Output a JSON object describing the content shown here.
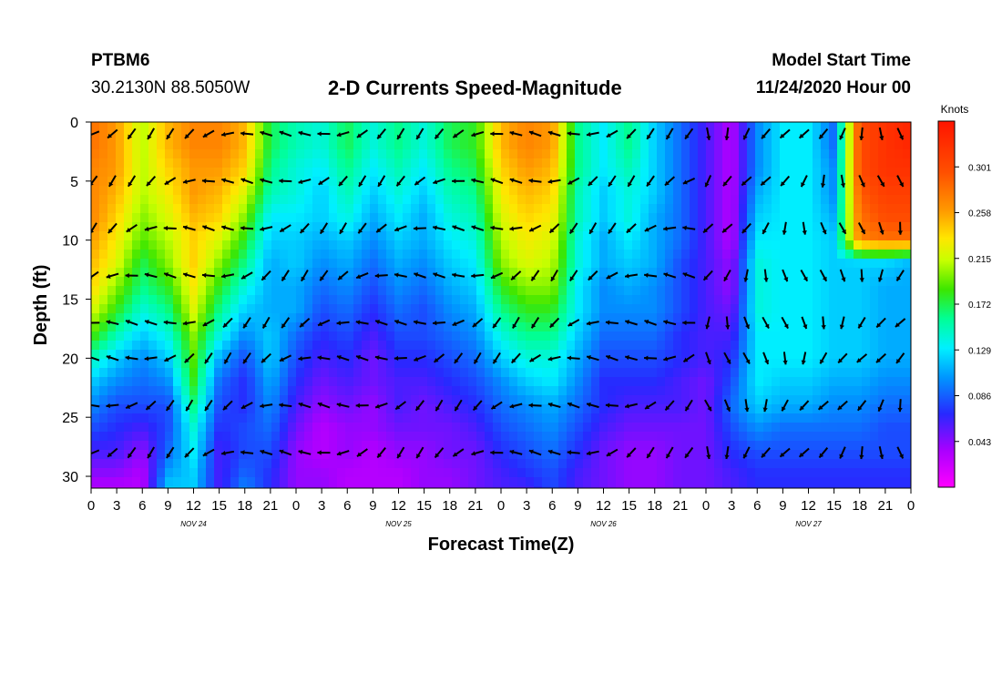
{
  "header": {
    "station": "PTBM6",
    "coords": "30.2130N 88.5050W",
    "title": "2-D Currents Speed-Magnitude",
    "model_start_label": "Model Start Time",
    "model_start_value": "11/24/2020 Hour 00"
  },
  "chart_data": {
    "type": "heatmap",
    "title": "2-D Currents Speed-Magnitude",
    "xlabel": "Forecast Time(Z)",
    "ylabel": "Depth (ft)",
    "xlim": [
      0,
      96
    ],
    "ylim": [
      0,
      31
    ],
    "y_inverted": true,
    "x_ticks": [
      0,
      3,
      6,
      9,
      12,
      15,
      18,
      21,
      24,
      27,
      30,
      33,
      36,
      39,
      42,
      45,
      48,
      51,
      54,
      57,
      60,
      63,
      66,
      69,
      72,
      75,
      78,
      81,
      84,
      87,
      90,
      93,
      96
    ],
    "x_tick_labels": [
      "0",
      "3",
      "6",
      "9",
      "12",
      "15",
      "18",
      "21",
      "0",
      "3",
      "6",
      "9",
      "12",
      "15",
      "18",
      "21",
      "0",
      "3",
      "6",
      "9",
      "12",
      "15",
      "18",
      "21",
      "0",
      "3",
      "6",
      "9",
      "12",
      "15",
      "18",
      "21",
      "0"
    ],
    "date_labels": [
      {
        "x": 12,
        "text": "NOV 24"
      },
      {
        "x": 36,
        "text": "NOV 25"
      },
      {
        "x": 60,
        "text": "NOV 26"
      },
      {
        "x": 84,
        "text": "NOV 27"
      }
    ],
    "y_ticks": [
      0,
      5,
      10,
      15,
      20,
      25,
      30
    ],
    "colorbar": {
      "unit": "Knots",
      "range": [
        0.0,
        0.344
      ],
      "tick_values": [
        0.043,
        0.086,
        0.129,
        0.172,
        0.215,
        0.258,
        0.301
      ],
      "tick_labels": [
        "0.043",
        "0.086",
        "0.129",
        "0.172",
        "0.215",
        "0.258",
        "0.301"
      ]
    },
    "arrow_depths": [
      1,
      5,
      9,
      13,
      17,
      20,
      24,
      28
    ],
    "field": {
      "hours": [
        0,
        3,
        6,
        9,
        12,
        15,
        18,
        21,
        24,
        27,
        30,
        33,
        36,
        39,
        42,
        45,
        48,
        51,
        54,
        57,
        60,
        63,
        66,
        69,
        72,
        75,
        78,
        81,
        84,
        87,
        90,
        93,
        96
      ],
      "depths": [
        0,
        2,
        4,
        6,
        8,
        10,
        12,
        14,
        16,
        18,
        20,
        22,
        24,
        26,
        28,
        30,
        31
      ],
      "speed": [
        [
          0.28,
          0.28,
          0.27,
          0.27,
          0.27,
          0.26,
          0.25,
          0.24,
          0.22,
          0.19,
          0.15,
          0.12,
          0.1,
          0.08,
          0.06,
          0.04,
          0.03
        ],
        [
          0.26,
          0.26,
          0.26,
          0.25,
          0.24,
          0.23,
          0.22,
          0.2,
          0.18,
          0.15,
          0.12,
          0.1,
          0.08,
          0.07,
          0.06,
          0.04,
          0.03
        ],
        [
          0.21,
          0.21,
          0.21,
          0.21,
          0.2,
          0.19,
          0.17,
          0.16,
          0.14,
          0.12,
          0.1,
          0.09,
          0.08,
          0.06,
          0.04,
          0.03,
          0.03
        ],
        [
          0.25,
          0.25,
          0.24,
          0.23,
          0.22,
          0.21,
          0.2,
          0.18,
          0.16,
          0.14,
          0.12,
          0.1,
          0.08,
          0.08,
          0.09,
          0.11,
          0.12
        ],
        [
          0.27,
          0.27,
          0.26,
          0.26,
          0.25,
          0.24,
          0.24,
          0.23,
          0.22,
          0.2,
          0.19,
          0.18,
          0.16,
          0.14,
          0.13,
          0.12,
          0.12
        ],
        [
          0.27,
          0.27,
          0.26,
          0.25,
          0.24,
          0.22,
          0.2,
          0.18,
          0.16,
          0.14,
          0.11,
          0.09,
          0.08,
          0.07,
          0.06,
          0.06,
          0.06
        ],
        [
          0.25,
          0.25,
          0.24,
          0.22,
          0.2,
          0.18,
          0.16,
          0.14,
          0.12,
          0.1,
          0.08,
          0.07,
          0.07,
          0.08,
          0.08,
          0.09,
          0.1
        ],
        [
          0.17,
          0.17,
          0.16,
          0.15,
          0.13,
          0.12,
          0.11,
          0.11,
          0.11,
          0.12,
          0.12,
          0.11,
          0.1,
          0.09,
          0.08,
          0.07,
          0.07
        ],
        [
          0.15,
          0.15,
          0.14,
          0.14,
          0.13,
          0.12,
          0.12,
          0.11,
          0.11,
          0.09,
          0.08,
          0.07,
          0.06,
          0.05,
          0.04,
          0.04,
          0.04
        ],
        [
          0.14,
          0.14,
          0.13,
          0.12,
          0.12,
          0.11,
          0.1,
          0.09,
          0.08,
          0.07,
          0.06,
          0.05,
          0.04,
          0.03,
          0.03,
          0.04,
          0.04
        ],
        [
          0.17,
          0.17,
          0.16,
          0.15,
          0.14,
          0.12,
          0.11,
          0.1,
          0.09,
          0.08,
          0.07,
          0.06,
          0.05,
          0.04,
          0.04,
          0.03,
          0.03
        ],
        [
          0.14,
          0.14,
          0.13,
          0.12,
          0.11,
          0.1,
          0.09,
          0.08,
          0.07,
          0.06,
          0.05,
          0.05,
          0.04,
          0.04,
          0.03,
          0.03,
          0.03
        ],
        [
          0.16,
          0.16,
          0.15,
          0.14,
          0.13,
          0.12,
          0.11,
          0.1,
          0.09,
          0.08,
          0.07,
          0.06,
          0.06,
          0.05,
          0.04,
          0.03,
          0.03
        ],
        [
          0.14,
          0.14,
          0.13,
          0.12,
          0.11,
          0.11,
          0.1,
          0.09,
          0.08,
          0.08,
          0.07,
          0.06,
          0.05,
          0.05,
          0.04,
          0.04,
          0.04
        ],
        [
          0.17,
          0.17,
          0.16,
          0.15,
          0.14,
          0.13,
          0.12,
          0.11,
          0.1,
          0.09,
          0.08,
          0.07,
          0.06,
          0.05,
          0.05,
          0.04,
          0.04
        ],
        [
          0.18,
          0.18,
          0.17,
          0.16,
          0.15,
          0.14,
          0.13,
          0.12,
          0.11,
          0.1,
          0.09,
          0.08,
          0.07,
          0.06,
          0.05,
          0.05,
          0.05
        ],
        [
          0.25,
          0.25,
          0.24,
          0.23,
          0.22,
          0.21,
          0.2,
          0.18,
          0.16,
          0.14,
          0.12,
          0.1,
          0.09,
          0.08,
          0.07,
          0.06,
          0.06
        ],
        [
          0.27,
          0.27,
          0.26,
          0.25,
          0.24,
          0.23,
          0.22,
          0.2,
          0.18,
          0.16,
          0.14,
          0.12,
          0.1,
          0.09,
          0.08,
          0.07,
          0.06
        ],
        [
          0.26,
          0.26,
          0.25,
          0.24,
          0.23,
          0.22,
          0.21,
          0.2,
          0.18,
          0.16,
          0.14,
          0.13,
          0.11,
          0.1,
          0.09,
          0.08,
          0.08
        ],
        [
          0.16,
          0.16,
          0.16,
          0.15,
          0.15,
          0.14,
          0.14,
          0.13,
          0.13,
          0.12,
          0.11,
          0.1,
          0.09,
          0.08,
          0.07,
          0.06,
          0.06
        ],
        [
          0.13,
          0.13,
          0.13,
          0.12,
          0.12,
          0.11,
          0.11,
          0.1,
          0.1,
          0.09,
          0.08,
          0.07,
          0.07,
          0.06,
          0.05,
          0.05,
          0.05
        ],
        [
          0.16,
          0.16,
          0.15,
          0.14,
          0.14,
          0.13,
          0.12,
          0.11,
          0.1,
          0.09,
          0.08,
          0.07,
          0.06,
          0.05,
          0.04,
          0.04,
          0.04
        ],
        [
          0.12,
          0.12,
          0.12,
          0.12,
          0.11,
          0.11,
          0.11,
          0.1,
          0.1,
          0.09,
          0.08,
          0.07,
          0.06,
          0.05,
          0.04,
          0.04,
          0.04
        ],
        [
          0.09,
          0.09,
          0.09,
          0.09,
          0.09,
          0.09,
          0.08,
          0.08,
          0.08,
          0.07,
          0.07,
          0.06,
          0.06,
          0.05,
          0.05,
          0.05,
          0.05
        ],
        [
          0.06,
          0.06,
          0.06,
          0.06,
          0.06,
          0.06,
          0.06,
          0.06,
          0.06,
          0.06,
          0.06,
          0.05,
          0.05,
          0.05,
          0.05,
          0.05,
          0.05
        ],
        [
          0.03,
          0.03,
          0.03,
          0.03,
          0.03,
          0.03,
          0.04,
          0.04,
          0.05,
          0.06,
          0.07,
          0.08,
          0.09,
          0.08,
          0.07,
          0.06,
          0.06
        ],
        [
          0.1,
          0.1,
          0.1,
          0.11,
          0.12,
          0.13,
          0.14,
          0.14,
          0.14,
          0.13,
          0.13,
          0.13,
          0.12,
          0.1,
          0.08,
          0.07,
          0.07
        ],
        [
          0.13,
          0.13,
          0.13,
          0.13,
          0.13,
          0.13,
          0.13,
          0.13,
          0.13,
          0.13,
          0.13,
          0.12,
          0.11,
          0.09,
          0.08,
          0.07,
          0.07
        ],
        [
          0.13,
          0.13,
          0.13,
          0.13,
          0.13,
          0.13,
          0.13,
          0.13,
          0.13,
          0.13,
          0.13,
          0.12,
          0.11,
          0.09,
          0.08,
          0.07,
          0.07
        ],
        [
          0.09,
          0.09,
          0.1,
          0.1,
          0.11,
          0.12,
          0.12,
          0.12,
          0.12,
          0.12,
          0.12,
          0.11,
          0.1,
          0.09,
          0.08,
          0.07,
          0.07
        ],
        [
          0.3,
          0.3,
          0.3,
          0.29,
          0.28,
          0.27,
          0.12,
          0.12,
          0.12,
          0.12,
          0.12,
          0.11,
          0.1,
          0.09,
          0.08,
          0.07,
          0.07
        ],
        [
          0.32,
          0.32,
          0.32,
          0.31,
          0.3,
          0.28,
          0.12,
          0.11,
          0.11,
          0.11,
          0.11,
          0.1,
          0.09,
          0.08,
          0.08,
          0.07,
          0.07
        ],
        [
          0.33,
          0.33,
          0.32,
          0.31,
          0.3,
          0.28,
          0.11,
          0.11,
          0.11,
          0.11,
          0.11,
          0.1,
          0.09,
          0.08,
          0.08,
          0.07,
          0.07
        ]
      ]
    }
  }
}
